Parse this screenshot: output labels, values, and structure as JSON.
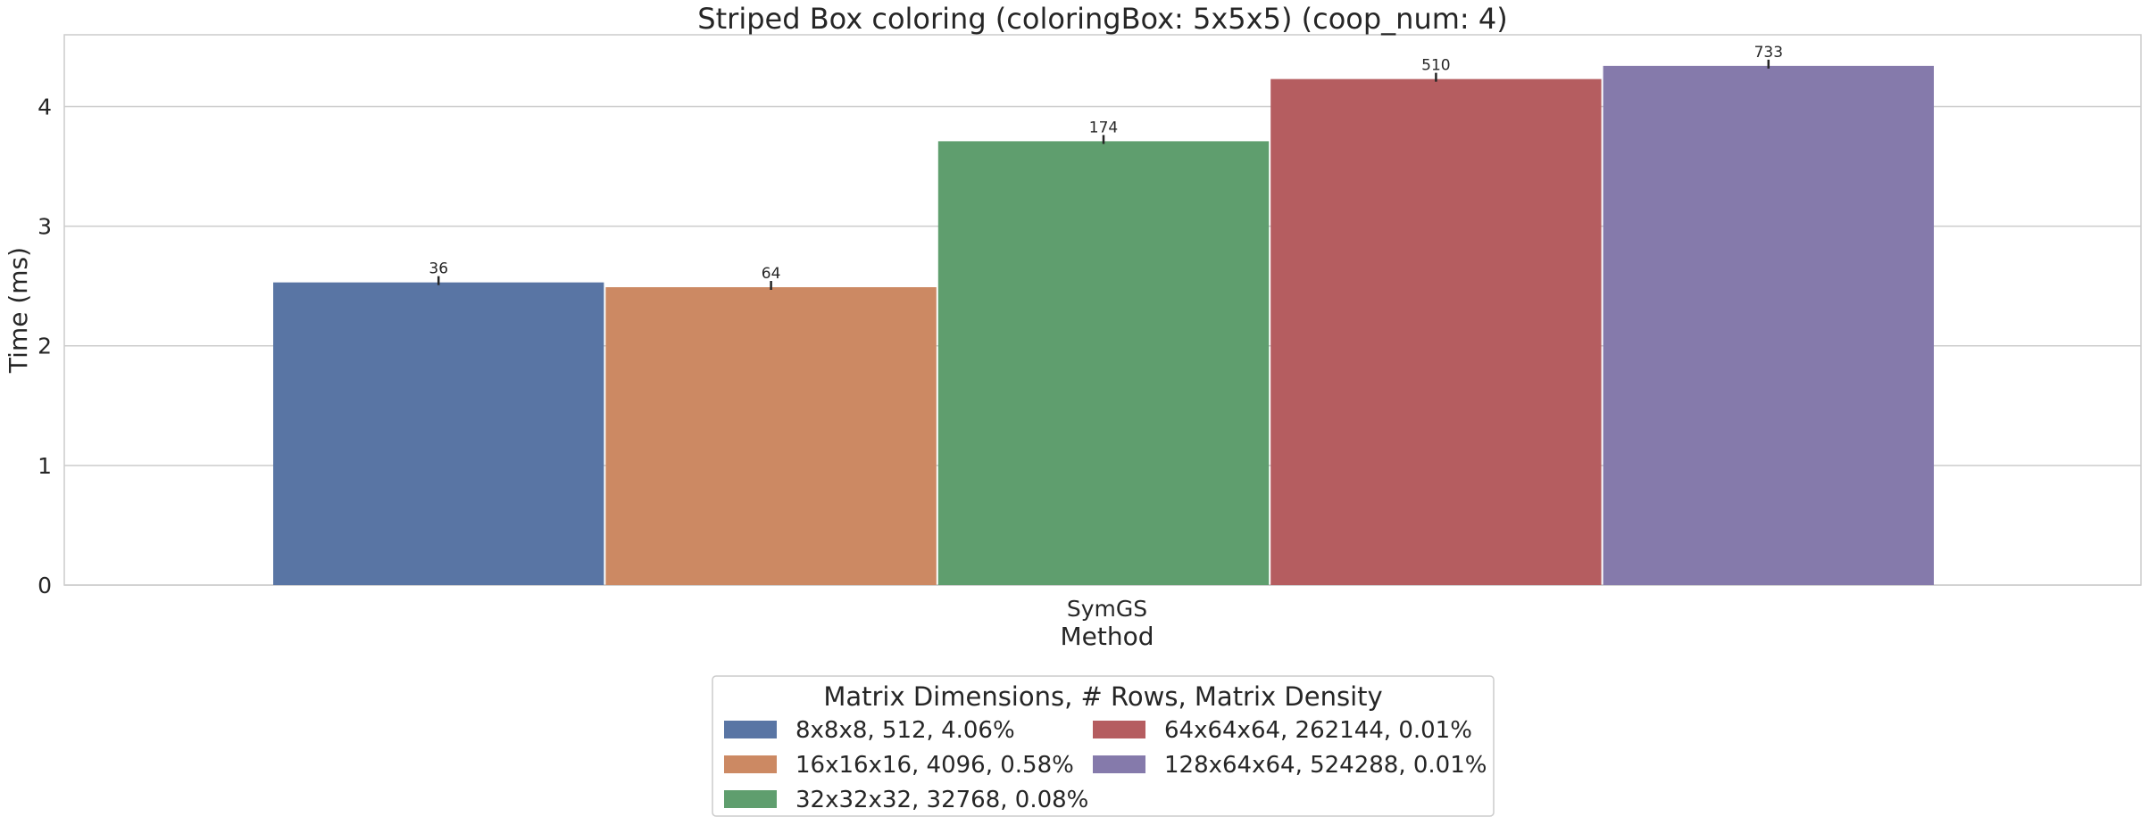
{
  "chart_data": {
    "type": "bar",
    "title": "Striped Box coloring (coloringBox: 5x5x5) (coop_num: 4)",
    "xlabel": "Method",
    "ylabel": "Time (ms)",
    "categories": [
      "SymGS"
    ],
    "ylim": [
      0,
      4.6
    ],
    "yticks": [
      0,
      1,
      2,
      3,
      4
    ],
    "grid": true,
    "legend_position": "bottom-center",
    "legend_title": "Matrix Dimensions, # Rows, Matrix Density",
    "series": [
      {
        "name": "8x8x8, 512, 4.06%",
        "values": [
          2.53
        ],
        "label": "36",
        "color": "#5975a4"
      },
      {
        "name": "16x16x16, 4096, 0.58%",
        "values": [
          2.49
        ],
        "label": "64",
        "color": "#cc8963"
      },
      {
        "name": "32x32x32, 32768, 0.08%",
        "values": [
          3.71
        ],
        "label": "174",
        "color": "#5f9e6e"
      },
      {
        "name": "64x64x64, 262144, 0.01%",
        "values": [
          4.23
        ],
        "label": "510",
        "color": "#b55d60"
      },
      {
        "name": "128x64x64, 524288, 0.01%",
        "values": [
          4.34
        ],
        "label": "733",
        "color": "#857aab"
      }
    ]
  }
}
